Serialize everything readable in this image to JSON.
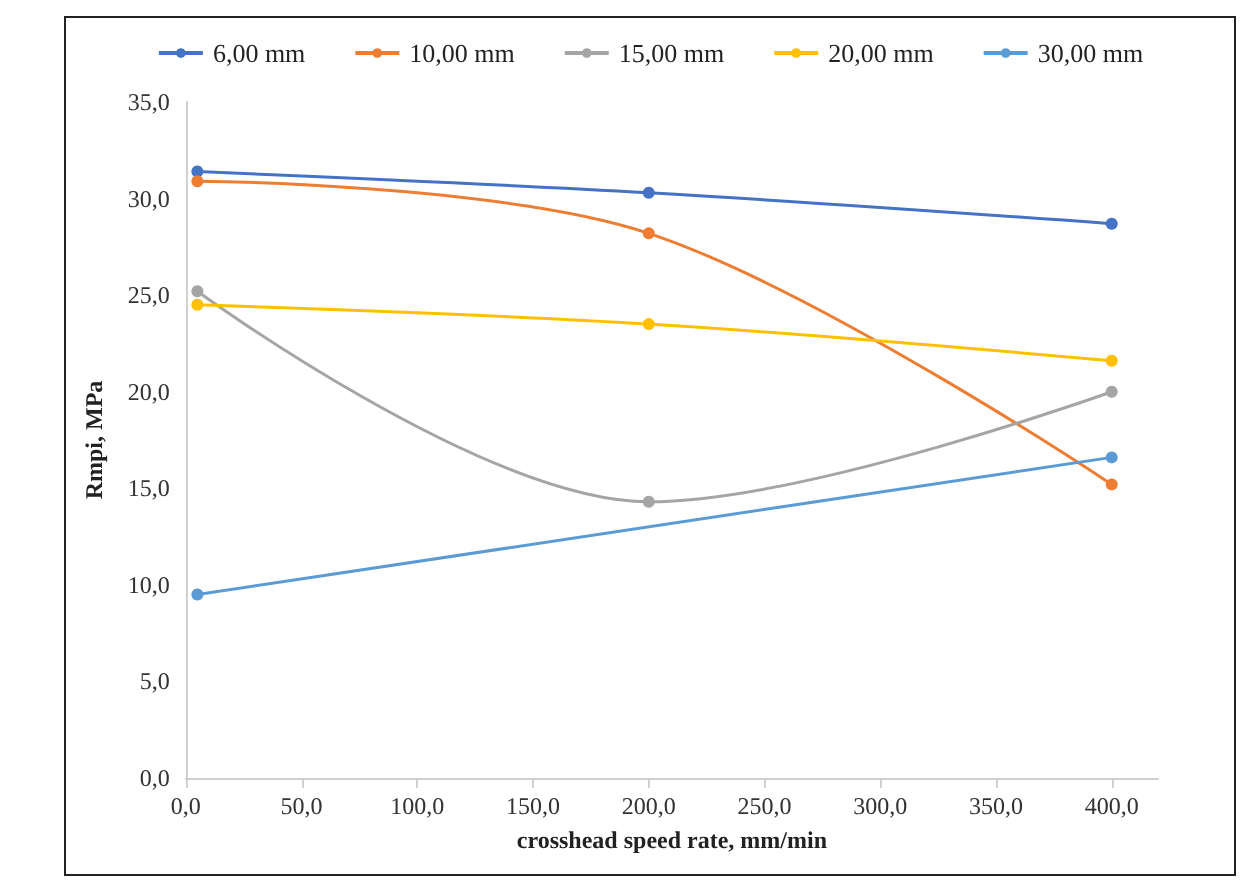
{
  "chart_data": {
    "type": "line",
    "xlabel": "crosshead speed rate, mm/min",
    "ylabel": "Rmpi, MPa",
    "x": [
      5,
      200,
      400
    ],
    "series": [
      {
        "name": "6,00 mm",
        "color": "#4472c4",
        "values": [
          31.4,
          30.3,
          28.7
        ]
      },
      {
        "name": "10,00 mm",
        "color": "#ed7d31",
        "values": [
          30.9,
          28.2,
          15.2
        ]
      },
      {
        "name": "15,00 mm",
        "color": "#a5a5a5",
        "values": [
          25.2,
          14.3,
          20.0
        ]
      },
      {
        "name": "20,00 mm",
        "color": "#ffc000",
        "values": [
          24.5,
          23.5,
          21.6
        ]
      },
      {
        "name": "30,00 mm",
        "color": "#5b9bd5",
        "x": [
          5,
          400
        ],
        "values": [
          9.5,
          16.6
        ]
      }
    ],
    "xlim": [
      0,
      420
    ],
    "xticks": [
      {
        "value": 0,
        "label": "0,0"
      },
      {
        "value": 50,
        "label": "50,0"
      },
      {
        "value": 100,
        "label": "100,0"
      },
      {
        "value": 150,
        "label": "150,0"
      },
      {
        "value": 200,
        "label": "200,0"
      },
      {
        "value": 250,
        "label": "250,0"
      },
      {
        "value": 300,
        "label": "300,0"
      },
      {
        "value": 350,
        "label": "350,0"
      },
      {
        "value": 400,
        "label": "400,0"
      }
    ],
    "ylim": [
      0,
      35
    ],
    "yticks": [
      {
        "value": 0,
        "label": "0,0"
      },
      {
        "value": 5,
        "label": "5,0"
      },
      {
        "value": 10,
        "label": "10,0"
      },
      {
        "value": 15,
        "label": "15,0"
      },
      {
        "value": 20,
        "label": "20,0"
      },
      {
        "value": 25,
        "label": "25,0"
      },
      {
        "value": 30,
        "label": "30,0"
      },
      {
        "value": 35,
        "label": "35,0"
      }
    ],
    "grid": false,
    "legend": "top",
    "marker": "circle",
    "line_style": "solid"
  }
}
